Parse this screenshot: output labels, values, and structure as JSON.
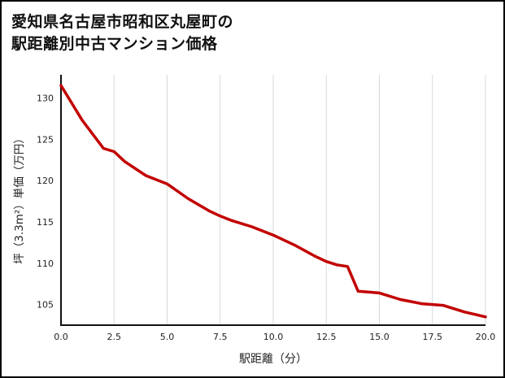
{
  "page": {
    "title_line1": "愛知県名古屋市昭和区丸屋町の",
    "title_line2": "駅距離別中古マンション価格"
  },
  "chart_data": {
    "type": "line",
    "title": "愛知県名古屋市昭和区丸屋町の駅距離別中古マンション価格",
    "xlabel": "駅距離（分）",
    "ylabel": "坪（3.3m²）単価（万円）",
    "x": [
      0,
      1,
      2,
      2.5,
      3,
      4,
      5,
      6,
      7,
      7.5,
      8,
      9,
      10,
      11,
      12,
      12.5,
      13,
      13.5,
      14,
      15,
      16,
      17,
      18,
      19,
      20
    ],
    "y": [
      131.5,
      127.3,
      123.9,
      123.5,
      122.3,
      120.6,
      119.6,
      117.8,
      116.3,
      115.7,
      115.2,
      114.4,
      113.4,
      112.2,
      110.8,
      110.2,
      109.8,
      109.6,
      106.6,
      106.4,
      105.6,
      105.1,
      104.9,
      104.1,
      103.5
    ],
    "xlim": [
      0,
      20
    ],
    "ylim": [
      102.5,
      132.8
    ],
    "x_tick_values": [
      0,
      2.5,
      5,
      7.5,
      10,
      12.5,
      15,
      17.5,
      20
    ],
    "x_tick_labels": [
      "0.0",
      "2.5",
      "5.0",
      "7.5",
      "10.0",
      "12.5",
      "15.0",
      "17.5",
      "20.0"
    ],
    "y_tick_values": [
      105,
      110,
      115,
      120,
      125,
      130
    ],
    "y_tick_labels": [
      "105",
      "110",
      "115",
      "120",
      "125",
      "130"
    ],
    "line_color": "#c20000",
    "grid_color": "#d9d9d9",
    "axis_color": "#111111",
    "grid": "vertical",
    "legend": "none"
  }
}
